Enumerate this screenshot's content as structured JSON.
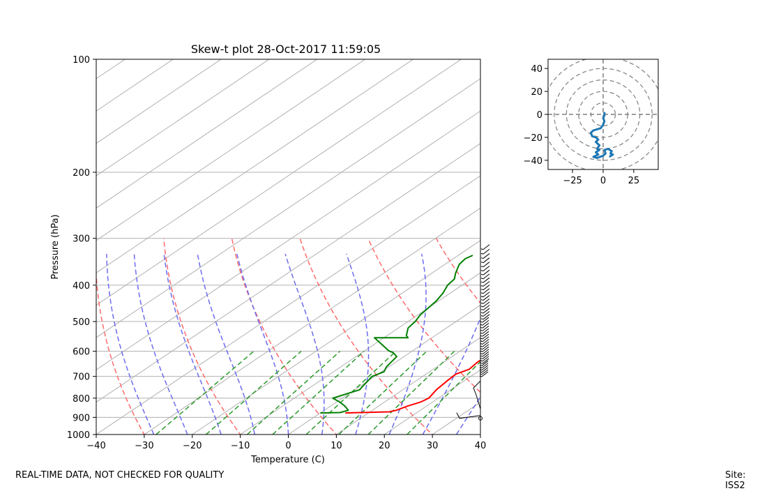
{
  "footer": {
    "disclaimer": "REAL-TIME DATA, NOT CHECKED FOR QUALITY",
    "site": "Site: ISS2"
  },
  "colors": {
    "temperature": "#ff0000",
    "dewpoint": "#008000",
    "dry_adiabat": "#ff6a6a",
    "moist_adiabat": "#6b6bf0",
    "mixing_ratio": "#2a9a2a",
    "isotherm": "#b0b0b0",
    "hodograph": "#1f77b4",
    "hodo_ring": "#7f7f7f"
  },
  "chart_data": [
    {
      "type": "line",
      "subtype": "skew-t",
      "title": "Skew-t plot 28-Oct-2017 11:59:05",
      "xlabel": "Temperature (C)",
      "ylabel": "Pressure (hPa)",
      "xlim": [
        -40,
        40
      ],
      "ylim": [
        1000,
        100
      ],
      "yscale": "log",
      "grid": true,
      "xticks": [
        -40,
        -30,
        -20,
        -10,
        0,
        10,
        20,
        30,
        40
      ],
      "yticks": [
        100,
        200,
        300,
        400,
        500,
        600,
        700,
        800,
        900,
        1000
      ],
      "series": [
        {
          "name": "Temperature",
          "color": "#ff0000",
          "points": [
            [
              5.2,
              876
            ],
            [
              14,
              870
            ],
            [
              15,
              862
            ],
            [
              16,
              840
            ],
            [
              17.5,
              820
            ],
            [
              18,
              800
            ],
            [
              17,
              760
            ],
            [
              16.5,
              720
            ],
            [
              16.2,
              690
            ],
            [
              17.5,
              670
            ],
            [
              17,
              640
            ],
            [
              17.4,
              610
            ],
            [
              19,
              580
            ],
            [
              19.5,
              556
            ],
            [
              18.5,
              530
            ],
            [
              17,
              505
            ],
            [
              15,
              480
            ],
            [
              13.5,
              460
            ],
            [
              12.5,
              440
            ],
            [
              11,
              420
            ],
            [
              9.5,
              400
            ],
            [
              8,
              382
            ],
            [
              6.5,
              365
            ],
            [
              5,
              350
            ],
            [
              4,
              338
            ],
            [
              3.5,
              330
            ]
          ]
        },
        {
          "name": "Dewpoint",
          "color": "#008000",
          "points": [
            [
              0,
              876
            ],
            [
              4,
              874
            ],
            [
              5,
              862
            ],
            [
              3,
              840
            ],
            [
              0.5,
              818
            ],
            [
              -2,
              800
            ],
            [
              -0.5,
              780
            ],
            [
              1,
              760
            ],
            [
              0.5,
              740
            ],
            [
              0,
              720
            ],
            [
              -0.5,
              700
            ],
            [
              0.5,
              680
            ],
            [
              -0.5,
              660
            ],
            [
              -1,
              640
            ],
            [
              -1.5,
              620
            ],
            [
              -3.5,
              605
            ],
            [
              -5,
              598
            ],
            [
              -12,
              552
            ],
            [
              -5,
              552
            ],
            [
              -6,
              545
            ],
            [
              -8,
              520
            ],
            [
              -8.5,
              500
            ],
            [
              -9.5,
              480
            ],
            [
              -10,
              460
            ],
            [
              -10.5,
              440
            ],
            [
              -11.5,
              420
            ],
            [
              -13,
              400
            ],
            [
              -13.5,
              385
            ],
            [
              -15,
              372
            ],
            [
              -16,
              362
            ],
            [
              -17,
              352
            ],
            [
              -17.5,
              340
            ],
            [
              -17,
              333
            ]
          ]
        }
      ],
      "dry_adiabats_thetaC": [
        -30,
        -10,
        10,
        30,
        50,
        70,
        90,
        110,
        130
      ],
      "moist_adiabats_startC": [
        -28,
        -21,
        -14,
        -7,
        0,
        7,
        14,
        21,
        28,
        35
      ],
      "mixing_ratios_gkg": [
        0.4,
        1,
        2,
        3,
        5,
        8,
        12,
        20
      ],
      "wind_barbs": "wind profile 300–900 hPa plotted at the right edge"
    },
    {
      "type": "line",
      "subtype": "hodograph",
      "xlim": [
        -45,
        45
      ],
      "ylim": [
        -48,
        48
      ],
      "xticks": [
        -25,
        0,
        25
      ],
      "yticks": [
        -40,
        -20,
        0,
        20,
        40
      ],
      "rings": [
        10,
        20,
        30,
        40,
        50
      ],
      "series": [
        {
          "name": "Wind",
          "color": "#1f77b4",
          "points": [
            [
              1,
              2
            ],
            [
              1,
              -1
            ],
            [
              0,
              -3
            ],
            [
              1,
              -6
            ],
            [
              0,
              -9
            ],
            [
              -2,
              -12
            ],
            [
              -8,
              -14
            ],
            [
              -10,
              -16
            ],
            [
              -9,
              -19
            ],
            [
              -6,
              -20
            ],
            [
              -4,
              -22
            ],
            [
              -6,
              -24
            ],
            [
              -3,
              -27
            ],
            [
              -5,
              -30
            ],
            [
              -3,
              -31
            ],
            [
              -6,
              -33
            ],
            [
              -4,
              -35
            ],
            [
              -8,
              -37
            ],
            [
              -5,
              -38
            ],
            [
              0,
              -36
            ],
            [
              2,
              -34
            ],
            [
              1,
              -31
            ],
            [
              4,
              -30
            ],
            [
              7,
              -32
            ],
            [
              6,
              -34
            ],
            [
              8,
              -35
            ],
            [
              5,
              -37
            ]
          ]
        }
      ]
    }
  ]
}
